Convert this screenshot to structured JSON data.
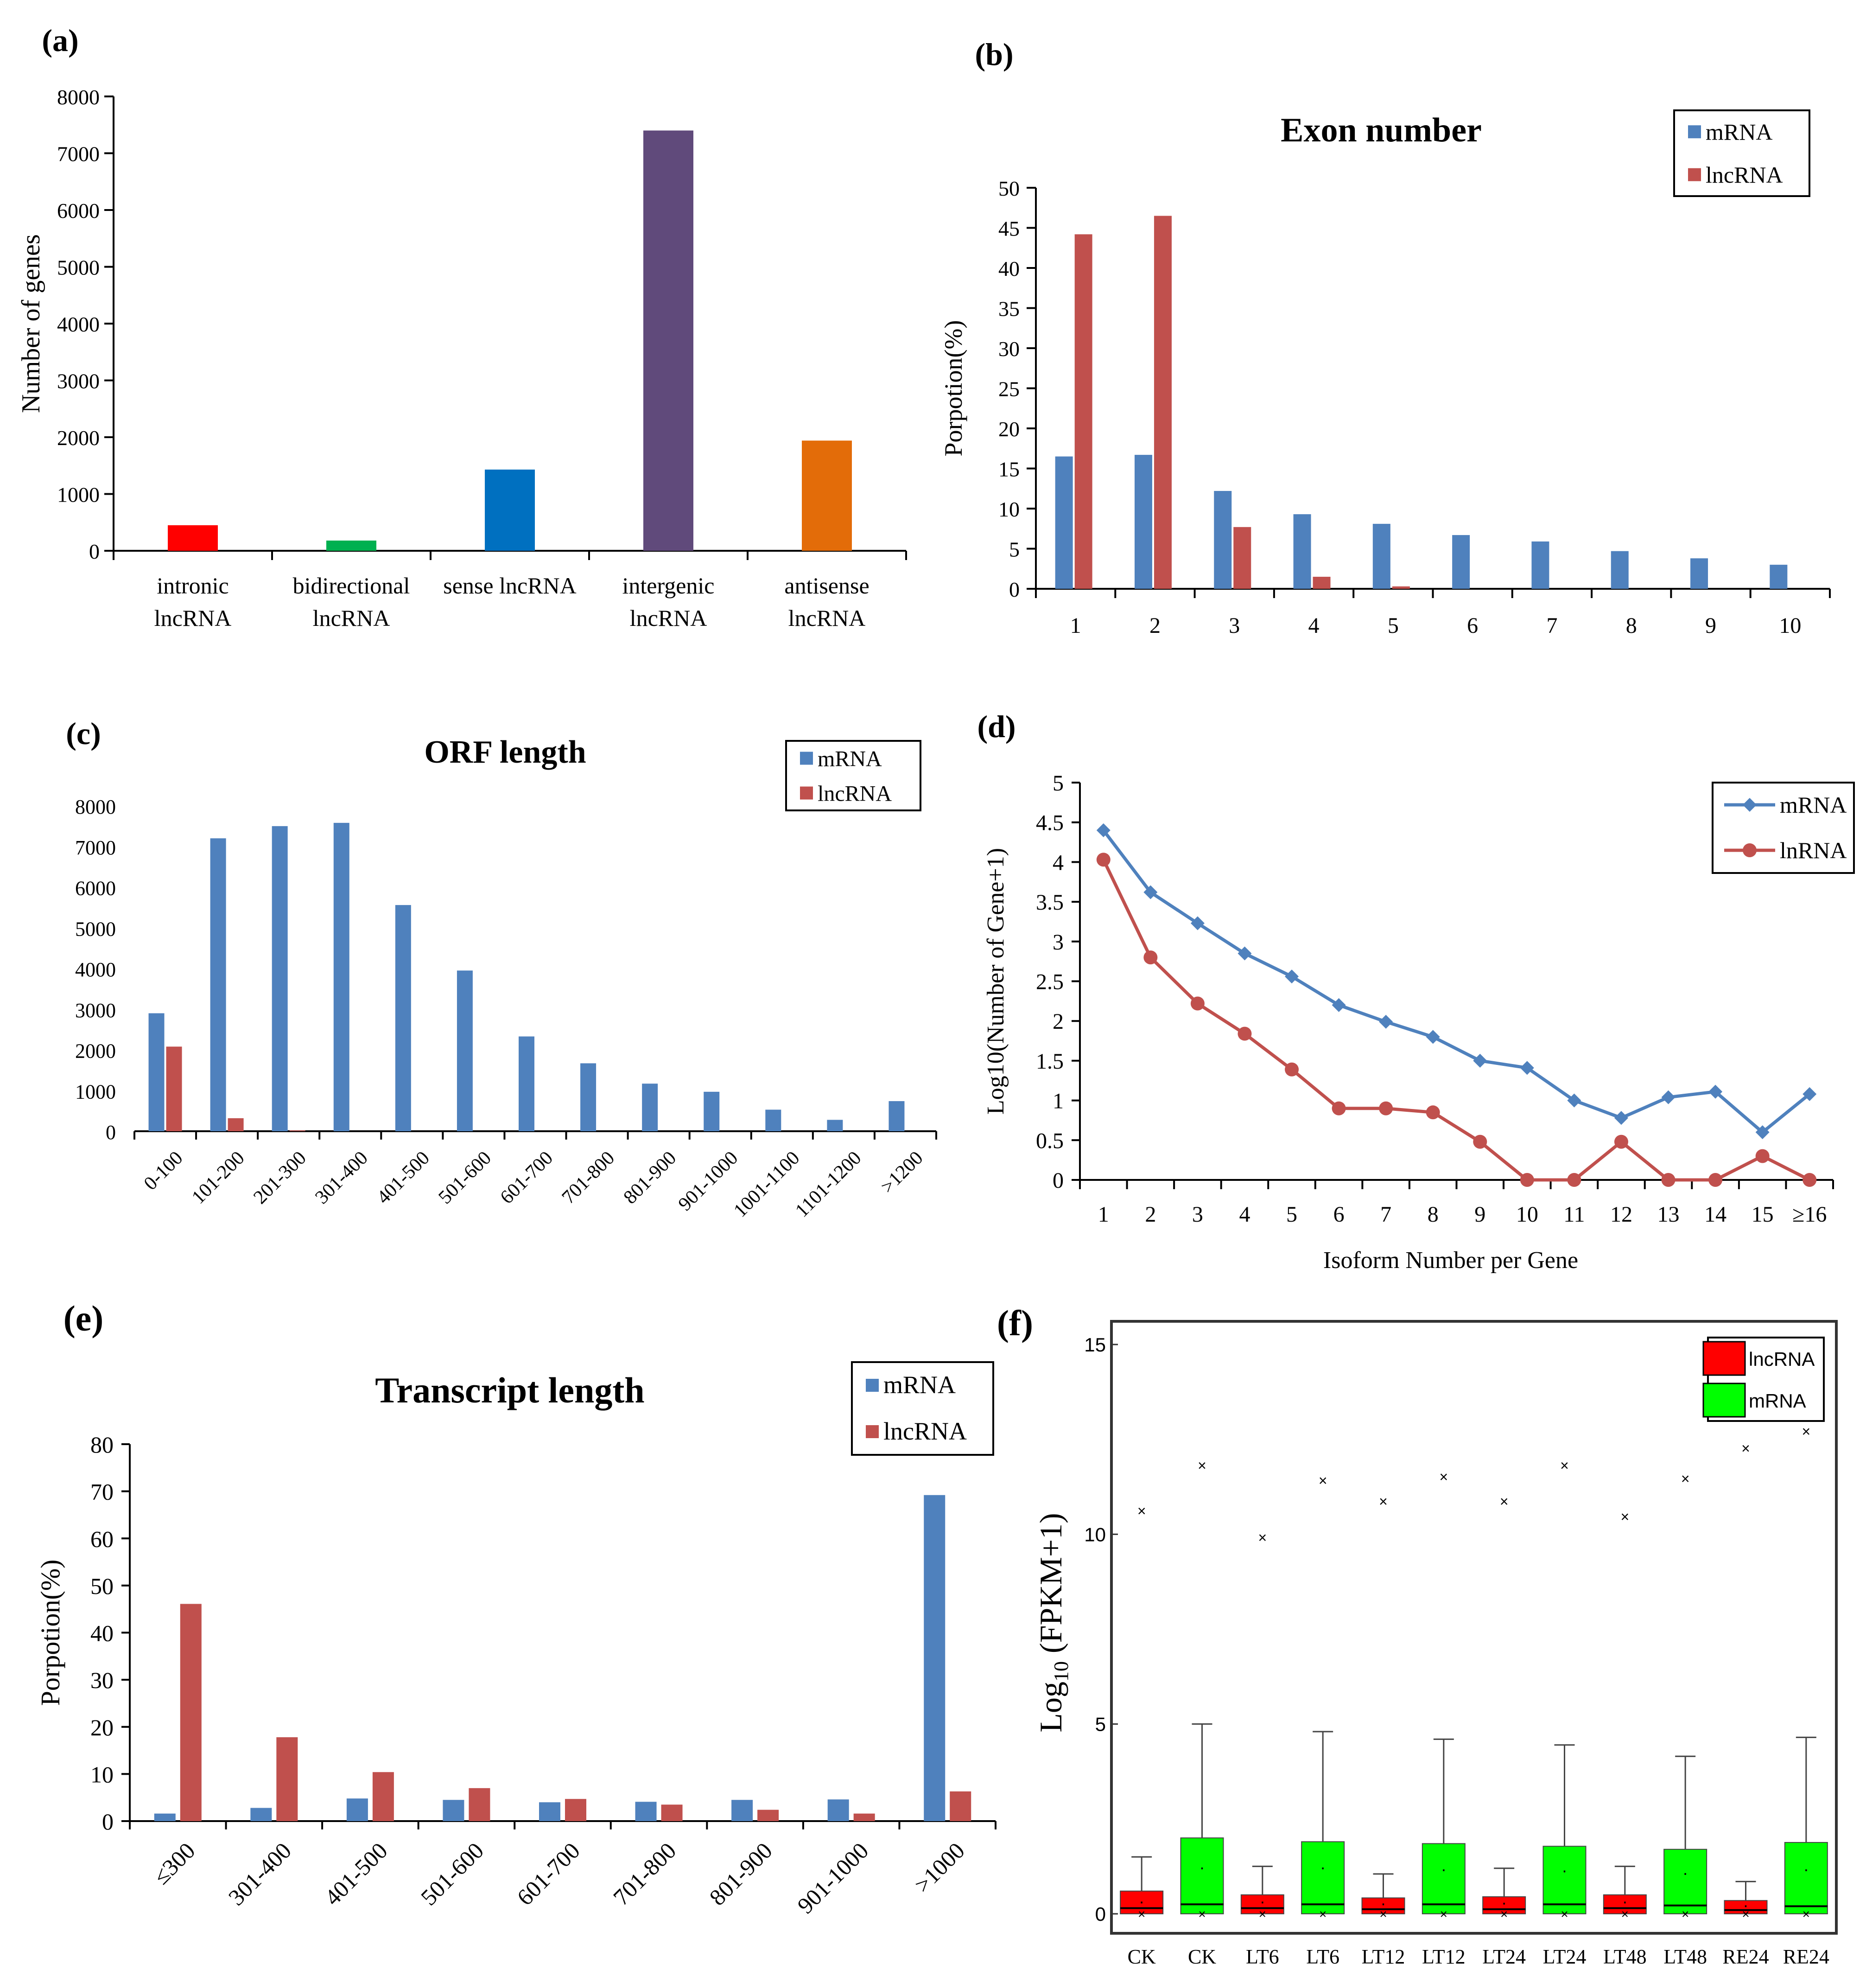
{
  "colors": {
    "mrna_blue": "#4f81bd",
    "lnc_red": "#c0504d",
    "f_red": "#ff0000",
    "f_green": "#00ff00",
    "a_intronic": "#ff0000",
    "a_bidirectional": "#00b050",
    "a_sense": "#0070c0",
    "a_intergenic": "#604a7b",
    "a_antisense": "#e36c09"
  },
  "chart_data": [
    {
      "id": "a",
      "panel_label": "(a)",
      "type": "bar",
      "title": "",
      "ylabel": "Number of genes",
      "ylim": [
        0,
        8000
      ],
      "yticks": [
        "0",
        "1000",
        "2000",
        "3000",
        "4000",
        "5000",
        "6000",
        "7000",
        "8000"
      ],
      "categories": [
        [
          "intronic",
          "lncRNA"
        ],
        [
          "bidirectional",
          "lncRNA"
        ],
        [
          "sense lncRNA"
        ],
        [
          "intergenic",
          "lncRNA"
        ],
        [
          "antisense",
          "lncRNA"
        ]
      ],
      "values": [
        450,
        180,
        1430,
        7400,
        1940
      ]
    },
    {
      "id": "b",
      "panel_label": "(b)",
      "type": "bar",
      "title": "Exon number",
      "ylabel": "Porpotion(%)",
      "ylim": [
        0,
        50
      ],
      "yticks": [
        "0",
        "5",
        "10",
        "15",
        "20",
        "25",
        "30",
        "35",
        "40",
        "45",
        "50"
      ],
      "categories": [
        "1",
        "2",
        "3",
        "4",
        "5",
        "6",
        "7",
        "8",
        "9",
        "10"
      ],
      "legend": [
        "mRNA",
        "lncRNA"
      ],
      "series": [
        {
          "name": "mRNA",
          "values": [
            16.5,
            16.7,
            12.2,
            9.3,
            8.1,
            6.7,
            5.9,
            4.7,
            3.8,
            3.0
          ]
        },
        {
          "name": "lncRNA",
          "values": [
            44.2,
            46.5,
            7.7,
            1.5,
            0.3,
            0,
            0,
            0,
            0,
            0
          ]
        }
      ]
    },
    {
      "id": "c",
      "panel_label": "(c)",
      "type": "bar",
      "title": "ORF length",
      "ylabel": "",
      "ylim": [
        0,
        8000
      ],
      "yticks": [
        "0",
        "1000",
        "2000",
        "3000",
        "4000",
        "5000",
        "6000",
        "7000",
        "8000"
      ],
      "categories": [
        "0-100",
        "101-200",
        "201-300",
        "301-400",
        "401-500",
        "501-600",
        "601-700",
        "701-800",
        "801-900",
        "901-1000",
        "1001-1100",
        "1101-1200",
        ">1200"
      ],
      "legend": [
        "mRNA",
        "lncRNA"
      ],
      "series": [
        {
          "name": "mRNA",
          "values": [
            2900,
            7200,
            7500,
            7580,
            5560,
            3950,
            2330,
            1670,
            1170,
            970,
            530,
            280,
            740
          ]
        },
        {
          "name": "lncRNA",
          "values": [
            2080,
            320,
            20,
            0,
            0,
            0,
            0,
            0,
            0,
            0,
            0,
            0,
            0
          ]
        }
      ]
    },
    {
      "id": "d",
      "panel_label": "(d)",
      "type": "line",
      "title": "",
      "xlabel": "Isoform Number per Gene",
      "ylabel": "Log10(Number of Gene+1)",
      "ylim": [
        0,
        5
      ],
      "yticks": [
        "0",
        "0.5",
        "1",
        "1.5",
        "2",
        "2.5",
        "3",
        "3.5",
        "4",
        "4.5",
        "5"
      ],
      "categories": [
        "1",
        "2",
        "3",
        "4",
        "5",
        "6",
        "7",
        "8",
        "9",
        "10",
        "11",
        "12",
        "13",
        "14",
        "15",
        "≥16"
      ],
      "legend": [
        "mRNA",
        "lnRNA"
      ],
      "series": [
        {
          "name": "mRNA",
          "values": [
            4.4,
            3.62,
            3.23,
            2.85,
            2.56,
            2.2,
            1.99,
            1.8,
            1.5,
            1.41,
            1.0,
            0.78,
            1.04,
            1.11,
            0.6,
            1.08
          ]
        },
        {
          "name": "lnRNA",
          "values": [
            4.03,
            2.8,
            2.22,
            1.84,
            1.39,
            0.9,
            0.9,
            0.85,
            0.48,
            0,
            0,
            0.48,
            0,
            0,
            0.3,
            0
          ]
        }
      ]
    },
    {
      "id": "e",
      "panel_label": "(e)",
      "type": "bar",
      "title": "Transcript length",
      "ylabel": "Porpotion(%)",
      "ylim": [
        0,
        80
      ],
      "yticks": [
        "0",
        "10",
        "20",
        "30",
        "40",
        "50",
        "60",
        "70",
        "80"
      ],
      "categories": [
        "≤300",
        "301-400",
        "401-500",
        "501-600",
        "601-700",
        "701-800",
        "801-900",
        "901-1000",
        ">1000"
      ],
      "legend": [
        "mRNA",
        "lncRNA"
      ],
      "series": [
        {
          "name": "mRNA",
          "values": [
            1.6,
            2.8,
            4.8,
            4.5,
            4.0,
            4.1,
            4.5,
            4.6,
            69.2
          ]
        },
        {
          "name": "lncRNA",
          "values": [
            46.1,
            17.8,
            10.4,
            7.0,
            4.7,
            3.5,
            2.4,
            1.6,
            6.3
          ]
        }
      ]
    },
    {
      "id": "f",
      "panel_label": "(f)",
      "type": "box",
      "title": "",
      "ylabel_main": "Log",
      "ylabel_sub": "10",
      "ylabel_rest": " (FPKM+1)",
      "ylim": [
        0,
        15
      ],
      "yticks": [
        "0",
        "5",
        "10",
        "15"
      ],
      "categories": [
        "CK",
        "CK",
        "LT6",
        "LT6",
        "LT12",
        "LT12",
        "LT24",
        "LT24",
        "LT48",
        "LT48",
        "RE24",
        "RE24"
      ],
      "legend": [
        "lncRNA",
        "mRNA"
      ],
      "boxes": [
        {
          "group": "lncRNA",
          "whisker_low": 0,
          "q1": 0,
          "median": 0.15,
          "q3": 0.6,
          "whisker_high": 1.5,
          "mean": 0.3,
          "outlier_max": 10.6,
          "outlier_min": 0
        },
        {
          "group": "mRNA",
          "whisker_low": 0,
          "q1": 0,
          "median": 0.25,
          "q3": 2.0,
          "whisker_high": 5.0,
          "mean": 1.2,
          "outlier_max": 11.8,
          "outlier_min": 0
        },
        {
          "group": "lncRNA",
          "whisker_low": 0,
          "q1": 0,
          "median": 0.15,
          "q3": 0.5,
          "whisker_high": 1.25,
          "mean": 0.3,
          "outlier_max": 9.9,
          "outlier_min": 0
        },
        {
          "group": "mRNA",
          "whisker_low": 0,
          "q1": 0,
          "median": 0.25,
          "q3": 1.9,
          "whisker_high": 4.8,
          "mean": 1.2,
          "outlier_max": 11.4,
          "outlier_min": 0
        },
        {
          "group": "lncRNA",
          "whisker_low": 0,
          "q1": 0,
          "median": 0.12,
          "q3": 0.42,
          "whisker_high": 1.05,
          "mean": 0.25,
          "outlier_max": 10.85,
          "outlier_min": 0
        },
        {
          "group": "mRNA",
          "whisker_low": 0,
          "q1": 0,
          "median": 0.25,
          "q3": 1.85,
          "whisker_high": 4.6,
          "mean": 1.15,
          "outlier_max": 11.5,
          "outlier_min": 0
        },
        {
          "group": "lncRNA",
          "whisker_low": 0,
          "q1": 0,
          "median": 0.12,
          "q3": 0.45,
          "whisker_high": 1.2,
          "mean": 0.27,
          "outlier_max": 10.85,
          "outlier_min": 0
        },
        {
          "group": "mRNA",
          "whisker_low": 0,
          "q1": 0,
          "median": 0.25,
          "q3": 1.78,
          "whisker_high": 4.45,
          "mean": 1.12,
          "outlier_max": 11.8,
          "outlier_min": 0
        },
        {
          "group": "lncRNA",
          "whisker_low": 0,
          "q1": 0,
          "median": 0.15,
          "q3": 0.5,
          "whisker_high": 1.25,
          "mean": 0.3,
          "outlier_max": 10.45,
          "outlier_min": 0
        },
        {
          "group": "mRNA",
          "whisker_low": 0,
          "q1": 0,
          "median": 0.22,
          "q3": 1.7,
          "whisker_high": 4.15,
          "mean": 1.05,
          "outlier_max": 11.45,
          "outlier_min": 0
        },
        {
          "group": "lncRNA",
          "whisker_low": 0,
          "q1": 0,
          "median": 0.1,
          "q3": 0.35,
          "whisker_high": 0.85,
          "mean": 0.2,
          "outlier_max": 12.25,
          "outlier_min": 0
        },
        {
          "group": "mRNA",
          "whisker_low": 0,
          "q1": 0,
          "median": 0.2,
          "q3": 1.88,
          "whisker_high": 4.65,
          "mean": 1.15,
          "outlier_max": 12.7,
          "outlier_min": 0
        }
      ]
    }
  ]
}
